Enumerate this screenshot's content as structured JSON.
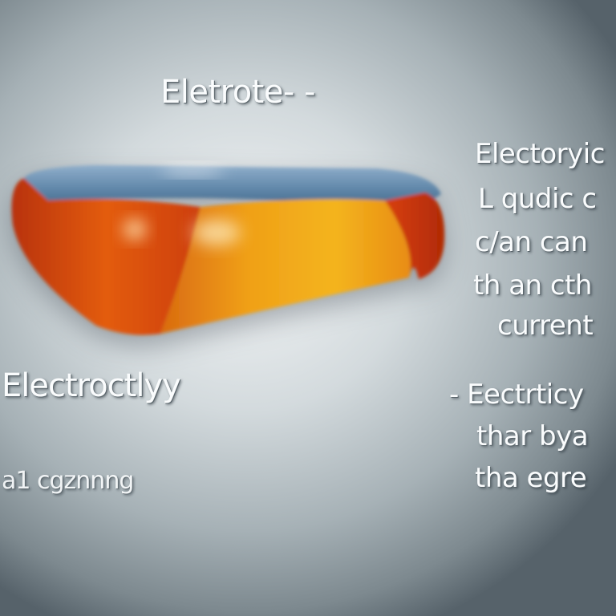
{
  "heading": "Eletrote- -",
  "left_label": "Electroctlyy",
  "left_caption": "a1 cgznnng",
  "right_block_1": [
    "Electoryic",
    "L qudic c",
    "c/an can",
    "th an cth",
    "current"
  ],
  "right_block_2": [
    "- Eectrticy",
    "thar bya",
    "tha egre"
  ],
  "object": {
    "name": "electrolyte-block",
    "colors": {
      "top": "#5f86a8",
      "front": "#f2a514",
      "side": "#cc3a08"
    }
  }
}
